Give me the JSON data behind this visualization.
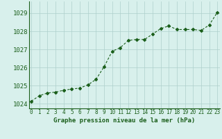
{
  "x": [
    0,
    1,
    2,
    3,
    4,
    5,
    6,
    7,
    8,
    9,
    10,
    11,
    12,
    13,
    14,
    15,
    16,
    17,
    18,
    19,
    20,
    21,
    22,
    23
  ],
  "y": [
    1024.15,
    1024.45,
    1024.6,
    1024.65,
    1024.75,
    1024.82,
    1024.87,
    1025.05,
    1025.35,
    1026.05,
    1026.9,
    1027.1,
    1027.5,
    1027.55,
    1027.55,
    1027.85,
    1028.15,
    1028.3,
    1028.1,
    1028.1,
    1028.1,
    1028.05,
    1028.35,
    1029.05
  ],
  "line_color": "#1a5e1a",
  "marker_color": "#1a5e1a",
  "bg_color": "#d8f0ec",
  "grid_color": "#aed0cc",
  "title": "Graphe pression niveau de la mer (hPa)",
  "ylabel_ticks": [
    1024,
    1025,
    1026,
    1027,
    1028,
    1029
  ],
  "xtick_labels": [
    "0",
    "1",
    "2",
    "3",
    "4",
    "5",
    "6",
    "7",
    "8",
    "9",
    "10",
    "11",
    "12",
    "13",
    "14",
    "15",
    "16",
    "17",
    "18",
    "19",
    "20",
    "21",
    "22",
    "23"
  ],
  "xlim": [
    -0.3,
    23.3
  ],
  "ylim": [
    1023.75,
    1029.65
  ],
  "figsize": [
    3.2,
    2.0
  ],
  "dpi": 100,
  "title_fontsize": 6.5,
  "ytick_fontsize": 6.5,
  "xtick_fontsize": 5.5
}
